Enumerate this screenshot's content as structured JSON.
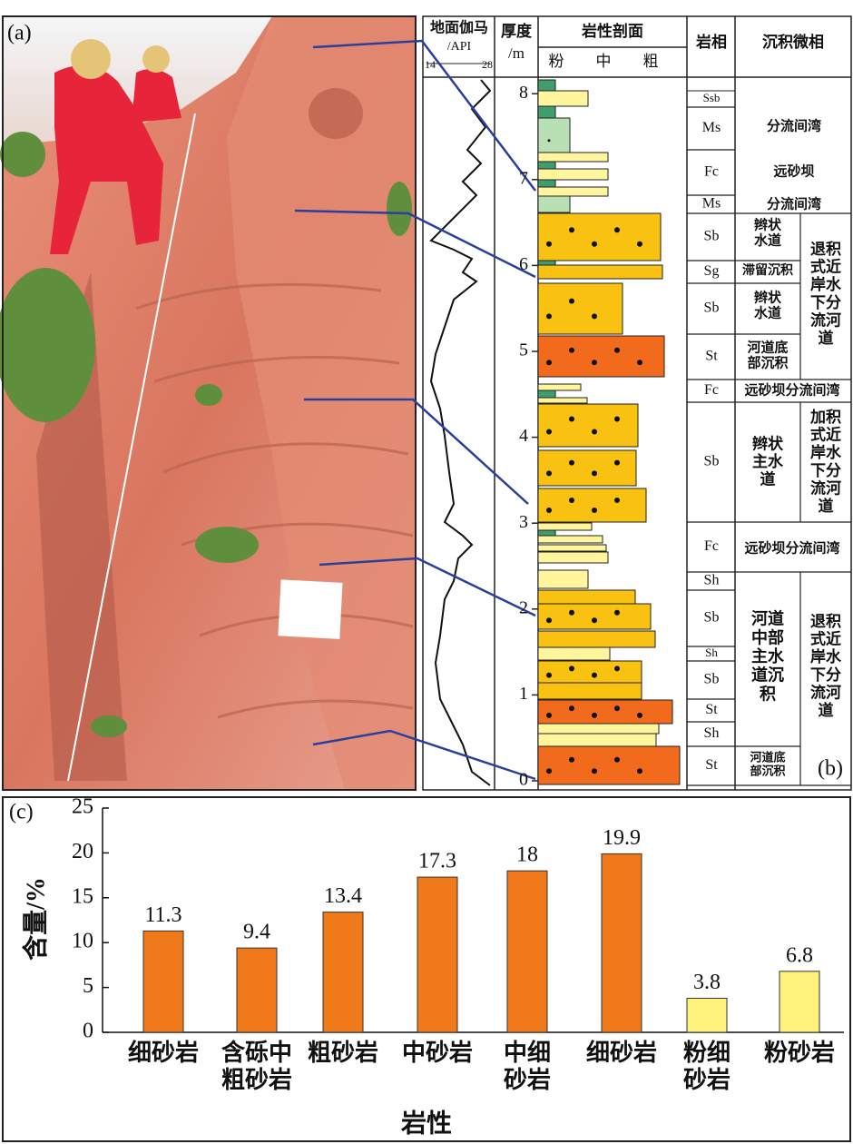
{
  "panel_labels": {
    "a": "(a)",
    "b": "(b)",
    "c": "(c)"
  },
  "column": {
    "gamma_title": "地面伽马",
    "gamma_unit": "/API",
    "gamma_range": [
      14,
      28
    ],
    "thickness_title": "厚度",
    "thickness_unit": "/m",
    "lithology_title": "岩性剖面",
    "grain_sizes": [
      "粉",
      "中",
      "粗"
    ],
    "facies_title": "岩相",
    "microfacies_title": "沉积微相",
    "depth_ticks": [
      0,
      1,
      2,
      3,
      4,
      5,
      6,
      7,
      8
    ],
    "facies": [
      "Ssb",
      "Ms",
      "Fc",
      "Ms",
      "Sb",
      "Sg",
      "Sb",
      "St",
      "Fc",
      "Sb",
      "Fc",
      "Sh",
      "Sb",
      "Sh",
      "Sb",
      "St",
      "Sh",
      "St"
    ],
    "microfacies": [
      "分流间湾",
      "远砂坝",
      "分流间湾",
      "辫状\n水道",
      "滞留沉积",
      "辫状\n水道",
      "河道底\n部沉积",
      "退积\n式近\n岸水\n下分\n流河\n道",
      "远砂坝分流间湾",
      "辫状\n主水\n道",
      "加积\n式近\n岸水\n下分\n流河\n道",
      "远砂坝分流间湾",
      "河道\n中部\n主水\n道沉\n积",
      "退积\n式近\n岸水\n下分\n流河\n道",
      "河道底\n部沉积"
    ]
  },
  "chart_data": {
    "type": "bar",
    "xlabel": "岩性",
    "ylabel": "含量/%",
    "categories": [
      "细砂岩",
      "含砾中\n粗砂岩",
      "粗砂岩",
      "中砂岩",
      "中细\n砂岩",
      "细砂岩",
      "粉细\n砂岩",
      "粉砂岩"
    ],
    "values": [
      11.3,
      9.4,
      13.4,
      17.3,
      18,
      19.9,
      3.8,
      6.8
    ],
    "colors": [
      "#f07a1a",
      "#f07a1a",
      "#f07a1a",
      "#f07a1a",
      "#f07a1a",
      "#f07a1a",
      "#fff27c",
      "#fff27c"
    ],
    "ylim": [
      0,
      25
    ],
    "yticks": [
      0,
      5,
      10,
      15,
      20,
      25
    ]
  }
}
